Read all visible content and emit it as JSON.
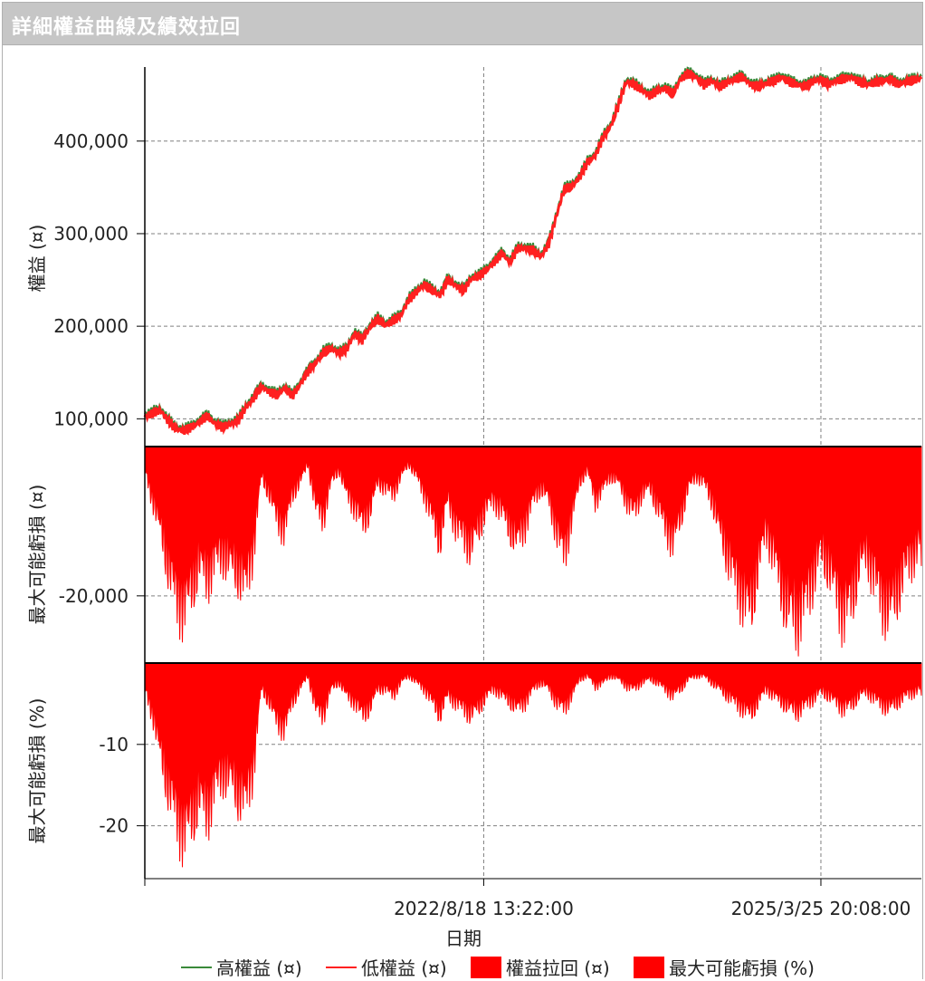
{
  "window": {
    "title": "詳細權益曲線及績效拉回"
  },
  "colors": {
    "high": "#3a8a3a",
    "low": "#ff2020",
    "fill": "#ff0000",
    "grid": "#808080"
  },
  "chart_data": [
    {
      "type": "line",
      "panel": "equity",
      "ylabel": "權益 (¤)",
      "ylim": [
        70000,
        480000
      ],
      "yticks": [
        100000,
        200000,
        300000,
        400000
      ],
      "ytick_labels": [
        "100,000",
        "200,000",
        "300,000",
        "400,000"
      ],
      "xlim": [
        0,
        1
      ],
      "series": [
        {
          "name": "高權益 (¤)",
          "x": [
            0,
            0.01,
            0.02,
            0.03,
            0.04,
            0.05,
            0.06,
            0.07,
            0.08,
            0.09,
            0.1,
            0.11,
            0.12,
            0.13,
            0.14,
            0.15,
            0.16,
            0.17,
            0.18,
            0.19,
            0.2,
            0.21,
            0.22,
            0.23,
            0.24,
            0.25,
            0.26,
            0.27,
            0.28,
            0.29,
            0.3,
            0.31,
            0.32,
            0.33,
            0.34,
            0.35,
            0.36,
            0.37,
            0.38,
            0.39,
            0.4,
            0.41,
            0.42,
            0.43,
            0.44,
            0.45,
            0.46,
            0.47,
            0.48,
            0.49,
            0.5,
            0.51,
            0.52,
            0.53,
            0.54,
            0.55,
            0.56,
            0.57,
            0.58,
            0.59,
            0.6,
            0.61,
            0.62,
            0.63,
            0.64,
            0.65,
            0.66,
            0.67,
            0.68,
            0.69,
            0.7,
            0.71,
            0.72,
            0.73,
            0.74,
            0.75,
            0.76,
            0.77,
            0.78,
            0.79,
            0.8,
            0.81,
            0.82,
            0.83,
            0.84,
            0.85,
            0.86,
            0.87,
            0.88,
            0.89,
            0.9,
            0.91,
            0.92,
            0.93,
            0.94,
            0.95,
            0.96,
            0.97,
            0.98,
            0.99,
            1.0
          ],
          "values": [
            103000,
            107000,
            110000,
            99000,
            90000,
            88000,
            92000,
            97000,
            104000,
            96000,
            92000,
            95000,
            99000,
            113000,
            123000,
            136000,
            130000,
            127000,
            134000,
            126000,
            138000,
            152000,
            161000,
            173000,
            177000,
            172000,
            176000,
            193000,
            186000,
            200000,
            209000,
            202000,
            207000,
            213000,
            230000,
            238000,
            246000,
            240000,
            234000,
            251000,
            245000,
            239000,
            252000,
            255000,
            262000,
            270000,
            280000,
            270000,
            285000,
            285000,
            283000,
            276000,
            290000,
            320000,
            349000,
            352000,
            362000,
            378000,
            385000,
            405000,
            417000,
            440000,
            465000,
            462000,
            456000,
            450000,
            455000,
            458000,
            452000,
            468000,
            474000,
            470000,
            462000,
            466000,
            460000,
            464000,
            468000,
            470000,
            462000,
            460000,
            463000,
            466000,
            470000,
            465000,
            462000,
            460000,
            465000,
            468000,
            462000,
            466000,
            468000,
            470000,
            465000,
            462000,
            464000,
            466000,
            468000,
            462000,
            465000,
            467000,
            468000
          ]
        },
        {
          "name": "低權益 (¤)"
        }
      ]
    },
    {
      "type": "area",
      "panel": "drawdown",
      "ylabel": "最大可能虧損 (¤)",
      "ylim": [
        -29000,
        0
      ],
      "yticks": [
        -20000
      ],
      "ytick_labels": [
        "-20,000"
      ],
      "series": [
        {
          "name": "權益拉回 (¤)",
          "x": [
            0,
            0.01,
            0.02,
            0.03,
            0.04,
            0.05,
            0.06,
            0.07,
            0.08,
            0.09,
            0.1,
            0.11,
            0.12,
            0.13,
            0.14,
            0.15,
            0.16,
            0.17,
            0.18,
            0.19,
            0.2,
            0.21,
            0.22,
            0.23,
            0.24,
            0.25,
            0.26,
            0.27,
            0.28,
            0.29,
            0.3,
            0.31,
            0.32,
            0.33,
            0.34,
            0.35,
            0.36,
            0.37,
            0.38,
            0.39,
            0.4,
            0.41,
            0.42,
            0.43,
            0.44,
            0.45,
            0.46,
            0.47,
            0.48,
            0.49,
            0.5,
            0.51,
            0.52,
            0.53,
            0.54,
            0.55,
            0.56,
            0.57,
            0.58,
            0.59,
            0.6,
            0.61,
            0.62,
            0.63,
            0.64,
            0.65,
            0.66,
            0.67,
            0.68,
            0.69,
            0.7,
            0.71,
            0.72,
            0.73,
            0.74,
            0.75,
            0.76,
            0.77,
            0.78,
            0.79,
            0.8,
            0.81,
            0.82,
            0.83,
            0.84,
            0.85,
            0.86,
            0.87,
            0.88,
            0.89,
            0.9,
            0.91,
            0.92,
            0.93,
            0.94,
            0.95,
            0.96,
            0.97,
            0.98,
            0.99,
            1.0
          ],
          "values": [
            -4000,
            -9000,
            -14000,
            -20000,
            -25000,
            -27000,
            -24000,
            -20000,
            -22000,
            -19000,
            -18000,
            -20000,
            -21000,
            -23000,
            -17000,
            -5000,
            -8000,
            -12000,
            -14000,
            -8000,
            -6000,
            -3000,
            -10000,
            -12000,
            -6000,
            -4000,
            -8000,
            -10000,
            -13000,
            -11000,
            -6000,
            -7000,
            -8000,
            -5000,
            -3000,
            -5000,
            -8000,
            -12000,
            -16000,
            -9000,
            -13000,
            -15000,
            -17000,
            -14000,
            -10000,
            -9000,
            -11000,
            -14000,
            -16000,
            -13000,
            -9000,
            -7000,
            -9000,
            -14000,
            -18000,
            -12000,
            -6000,
            -4000,
            -9000,
            -7000,
            -5000,
            -6000,
            -9000,
            -11000,
            -8000,
            -7000,
            -10000,
            -13000,
            -16000,
            -12000,
            -7000,
            -5000,
            -6000,
            -9000,
            -14000,
            -18000,
            -22000,
            -25000,
            -28000,
            -20000,
            -14000,
            -18000,
            -24000,
            -28000,
            -29000,
            -26000,
            -22000,
            -18000,
            -20000,
            -24000,
            -28000,
            -26000,
            -20000,
            -18000,
            -22000,
            -26000,
            -28000,
            -24000,
            -20000,
            -18000,
            -16000
          ]
        }
      ]
    },
    {
      "type": "area",
      "panel": "drawdown_pct",
      "ylabel": "最大可能虧損 (%)",
      "ylim": [
        -26.5,
        0
      ],
      "yticks": [
        -10,
        -20
      ],
      "ytick_labels": [
        "-10",
        "-20"
      ],
      "xticks": [
        0.4364,
        0.8706
      ],
      "xtick_labels": [
        "2022/8/18 13:22:00",
        "2025/3/25 20:08:00"
      ],
      "xlabel": "日期",
      "series": [
        {
          "name": "最大可能虧損 (%)",
          "x": [
            0,
            0.01,
            0.02,
            0.03,
            0.04,
            0.05,
            0.06,
            0.07,
            0.08,
            0.09,
            0.1,
            0.11,
            0.12,
            0.13,
            0.14,
            0.15,
            0.16,
            0.17,
            0.18,
            0.19,
            0.2,
            0.21,
            0.22,
            0.23,
            0.24,
            0.25,
            0.26,
            0.27,
            0.28,
            0.29,
            0.3,
            0.31,
            0.32,
            0.33,
            0.34,
            0.35,
            0.36,
            0.37,
            0.38,
            0.39,
            0.4,
            0.41,
            0.42,
            0.43,
            0.44,
            0.45,
            0.46,
            0.47,
            0.48,
            0.49,
            0.5,
            0.51,
            0.52,
            0.53,
            0.54,
            0.55,
            0.56,
            0.57,
            0.58,
            0.59,
            0.6,
            0.61,
            0.62,
            0.63,
            0.64,
            0.65,
            0.66,
            0.67,
            0.68,
            0.69,
            0.7,
            0.71,
            0.72,
            0.73,
            0.74,
            0.75,
            0.76,
            0.77,
            0.78,
            0.79,
            0.8,
            0.81,
            0.82,
            0.83,
            0.84,
            0.85,
            0.86,
            0.87,
            0.88,
            0.89,
            0.9,
            0.91,
            0.92,
            0.93,
            0.94,
            0.95,
            0.96,
            0.97,
            0.98,
            0.99,
            1.0
          ],
          "values": [
            -4,
            -8,
            -14,
            -19,
            -23,
            -26,
            -24,
            -21,
            -23,
            -19,
            -17,
            -18,
            -20,
            -21,
            -16,
            -4,
            -6,
            -9,
            -10,
            -6,
            -4,
            -2,
            -7,
            -8,
            -4,
            -3,
            -5,
            -6,
            -8,
            -7,
            -4,
            -4,
            -5,
            -3,
            -2,
            -3,
            -4,
            -6,
            -8,
            -5,
            -6,
            -7,
            -8,
            -7,
            -5,
            -4,
            -5,
            -6,
            -7,
            -6,
            -4,
            -3,
            -4,
            -6,
            -7,
            -5,
            -2.5,
            -2,
            -3.5,
            -3,
            -2,
            -2.5,
            -3.5,
            -4,
            -3,
            -2.5,
            -3,
            -4,
            -5,
            -4,
            -2.5,
            -2,
            -2,
            -3,
            -4,
            -5,
            -6,
            -7,
            -8,
            -6,
            -4,
            -5,
            -6,
            -7,
            -7.5,
            -6.5,
            -5.5,
            -4.5,
            -5,
            -6,
            -7,
            -6.5,
            -5,
            -4.5,
            -5.5,
            -6.5,
            -7,
            -6,
            -5,
            -4.5,
            -4
          ]
        }
      ]
    }
  ],
  "legend": [
    {
      "label": "高權益 (¤)",
      "kind": "line",
      "color": "#3a8a3a"
    },
    {
      "label": "低權益 (¤)",
      "kind": "line",
      "color": "#ff2020"
    },
    {
      "label": "權益拉回 (¤)",
      "kind": "box",
      "color": "#ff0000"
    },
    {
      "label": "最大可能虧損 (%)",
      "kind": "box",
      "color": "#ff0000"
    }
  ]
}
